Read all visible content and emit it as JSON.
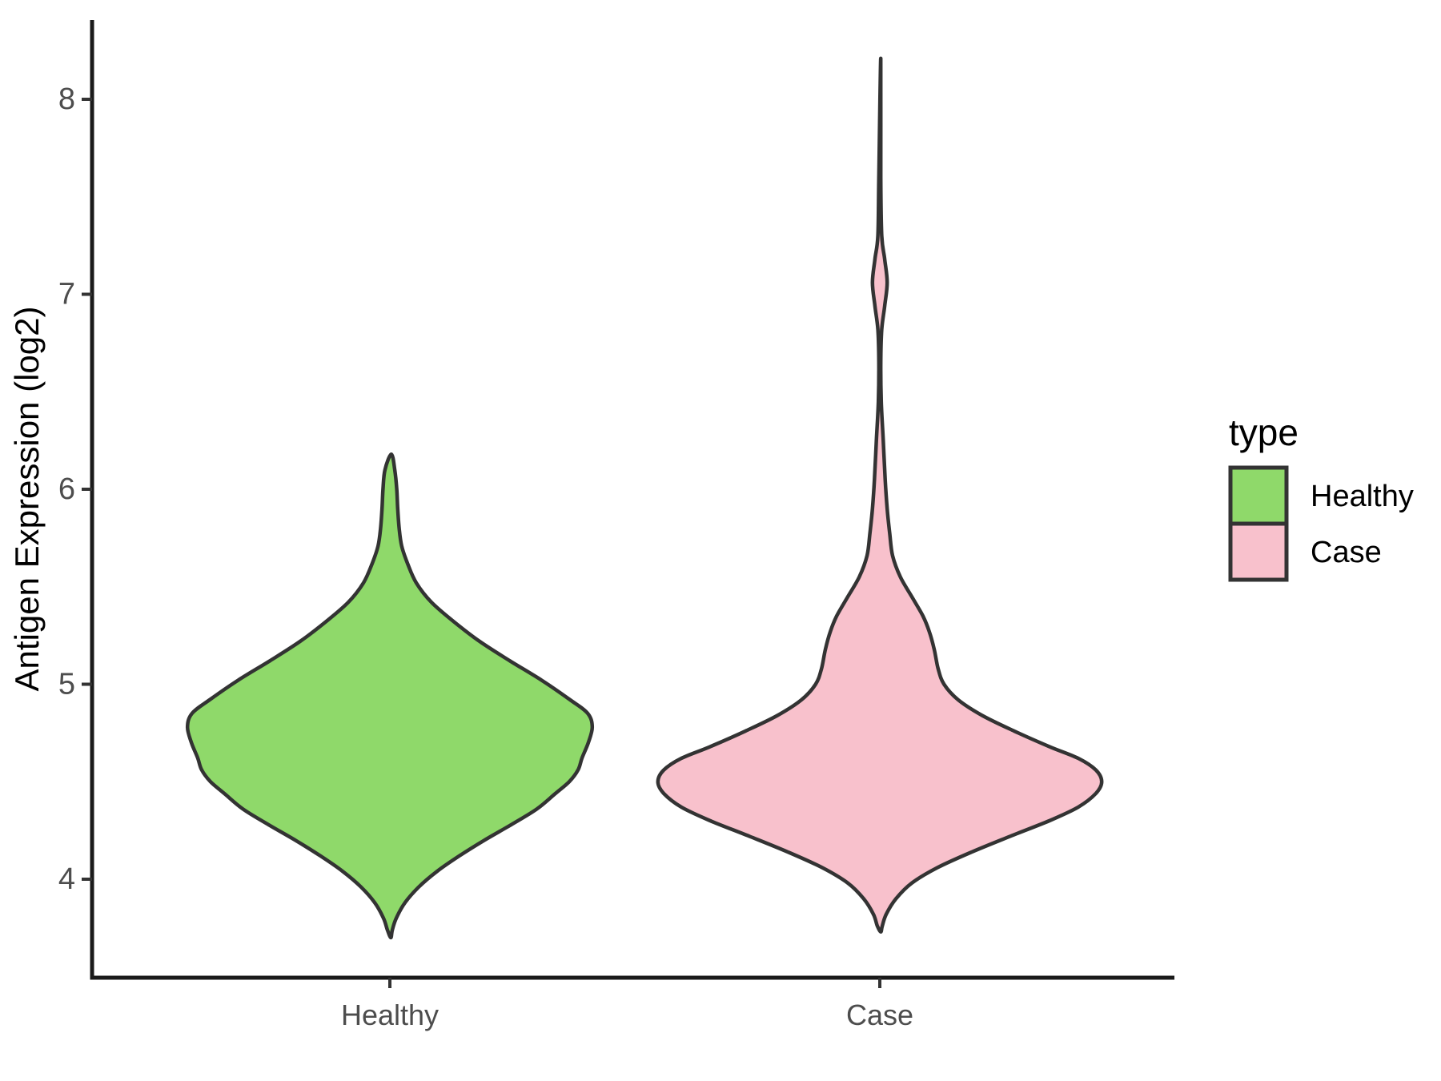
{
  "chart_data": {
    "type": "violin",
    "title": "",
    "xlabel": "",
    "ylabel": "Antigen Expression (log2)",
    "ylim": [
      3.45,
      8.45
    ],
    "yticks": [
      4,
      5,
      6,
      7,
      8
    ],
    "grid": "off",
    "background": "#ffffff",
    "axis_line_color": "#1a1a1a",
    "tick_label_color": "#4d4d4d",
    "outline_color": "#333333",
    "categories": [
      "Healthy",
      "Case"
    ],
    "legend": {
      "title": "type",
      "position": "right",
      "entries": [
        {
          "label": "Healthy",
          "color": "#8FD96A"
        },
        {
          "label": "Case",
          "color": "#F8C1CC"
        }
      ]
    },
    "series": [
      {
        "name": "Healthy",
        "color": "#8FD96A",
        "category_index": 0,
        "peak_value": 4.82,
        "min_value": 3.7,
        "max_value": 6.18,
        "profile": [
          [
            6.18,
            0.003
          ],
          [
            6.1,
            0.01
          ],
          [
            6.0,
            0.014
          ],
          [
            5.9,
            0.016
          ],
          [
            5.8,
            0.019
          ],
          [
            5.71,
            0.024
          ],
          [
            5.62,
            0.036
          ],
          [
            5.52,
            0.054
          ],
          [
            5.42,
            0.085
          ],
          [
            5.32,
            0.131
          ],
          [
            5.22,
            0.183
          ],
          [
            5.12,
            0.245
          ],
          [
            5.02,
            0.31
          ],
          [
            4.92,
            0.368
          ],
          [
            4.85,
            0.404
          ],
          [
            4.78,
            0.413
          ],
          [
            4.7,
            0.405
          ],
          [
            4.62,
            0.392
          ],
          [
            4.56,
            0.384
          ],
          [
            4.5,
            0.366
          ],
          [
            4.44,
            0.338
          ],
          [
            4.36,
            0.3
          ],
          [
            4.28,
            0.248
          ],
          [
            4.2,
            0.193
          ],
          [
            4.12,
            0.142
          ],
          [
            4.04,
            0.096
          ],
          [
            3.96,
            0.059
          ],
          [
            3.88,
            0.031
          ],
          [
            3.8,
            0.013
          ],
          [
            3.74,
            0.005
          ],
          [
            3.7,
            0.002
          ]
        ]
      },
      {
        "name": "Case",
        "color": "#F8C1CC",
        "category_index": 1,
        "peak_value": 4.5,
        "min_value": 3.73,
        "max_value": 8.21,
        "profile": [
          [
            8.21,
            0.002
          ],
          [
            7.6,
            0.002
          ],
          [
            7.3,
            0.004
          ],
          [
            7.18,
            0.01
          ],
          [
            7.06,
            0.015
          ],
          [
            6.94,
            0.01
          ],
          [
            6.82,
            0.004
          ],
          [
            6.65,
            0.002
          ],
          [
            6.45,
            0.003
          ],
          [
            6.25,
            0.007
          ],
          [
            6.05,
            0.011
          ],
          [
            5.9,
            0.015
          ],
          [
            5.78,
            0.02
          ],
          [
            5.66,
            0.026
          ],
          [
            5.55,
            0.042
          ],
          [
            5.45,
            0.065
          ],
          [
            5.35,
            0.088
          ],
          [
            5.27,
            0.101
          ],
          [
            5.18,
            0.111
          ],
          [
            5.08,
            0.119
          ],
          [
            5.0,
            0.131
          ],
          [
            4.92,
            0.16
          ],
          [
            4.84,
            0.209
          ],
          [
            4.76,
            0.274
          ],
          [
            4.68,
            0.346
          ],
          [
            4.62,
            0.405
          ],
          [
            4.56,
            0.441
          ],
          [
            4.5,
            0.453
          ],
          [
            4.44,
            0.441
          ],
          [
            4.37,
            0.405
          ],
          [
            4.3,
            0.346
          ],
          [
            4.22,
            0.266
          ],
          [
            4.14,
            0.188
          ],
          [
            4.06,
            0.118
          ],
          [
            3.98,
            0.065
          ],
          [
            3.9,
            0.033
          ],
          [
            3.82,
            0.013
          ],
          [
            3.76,
            0.005
          ],
          [
            3.73,
            0.002
          ]
        ]
      }
    ]
  }
}
